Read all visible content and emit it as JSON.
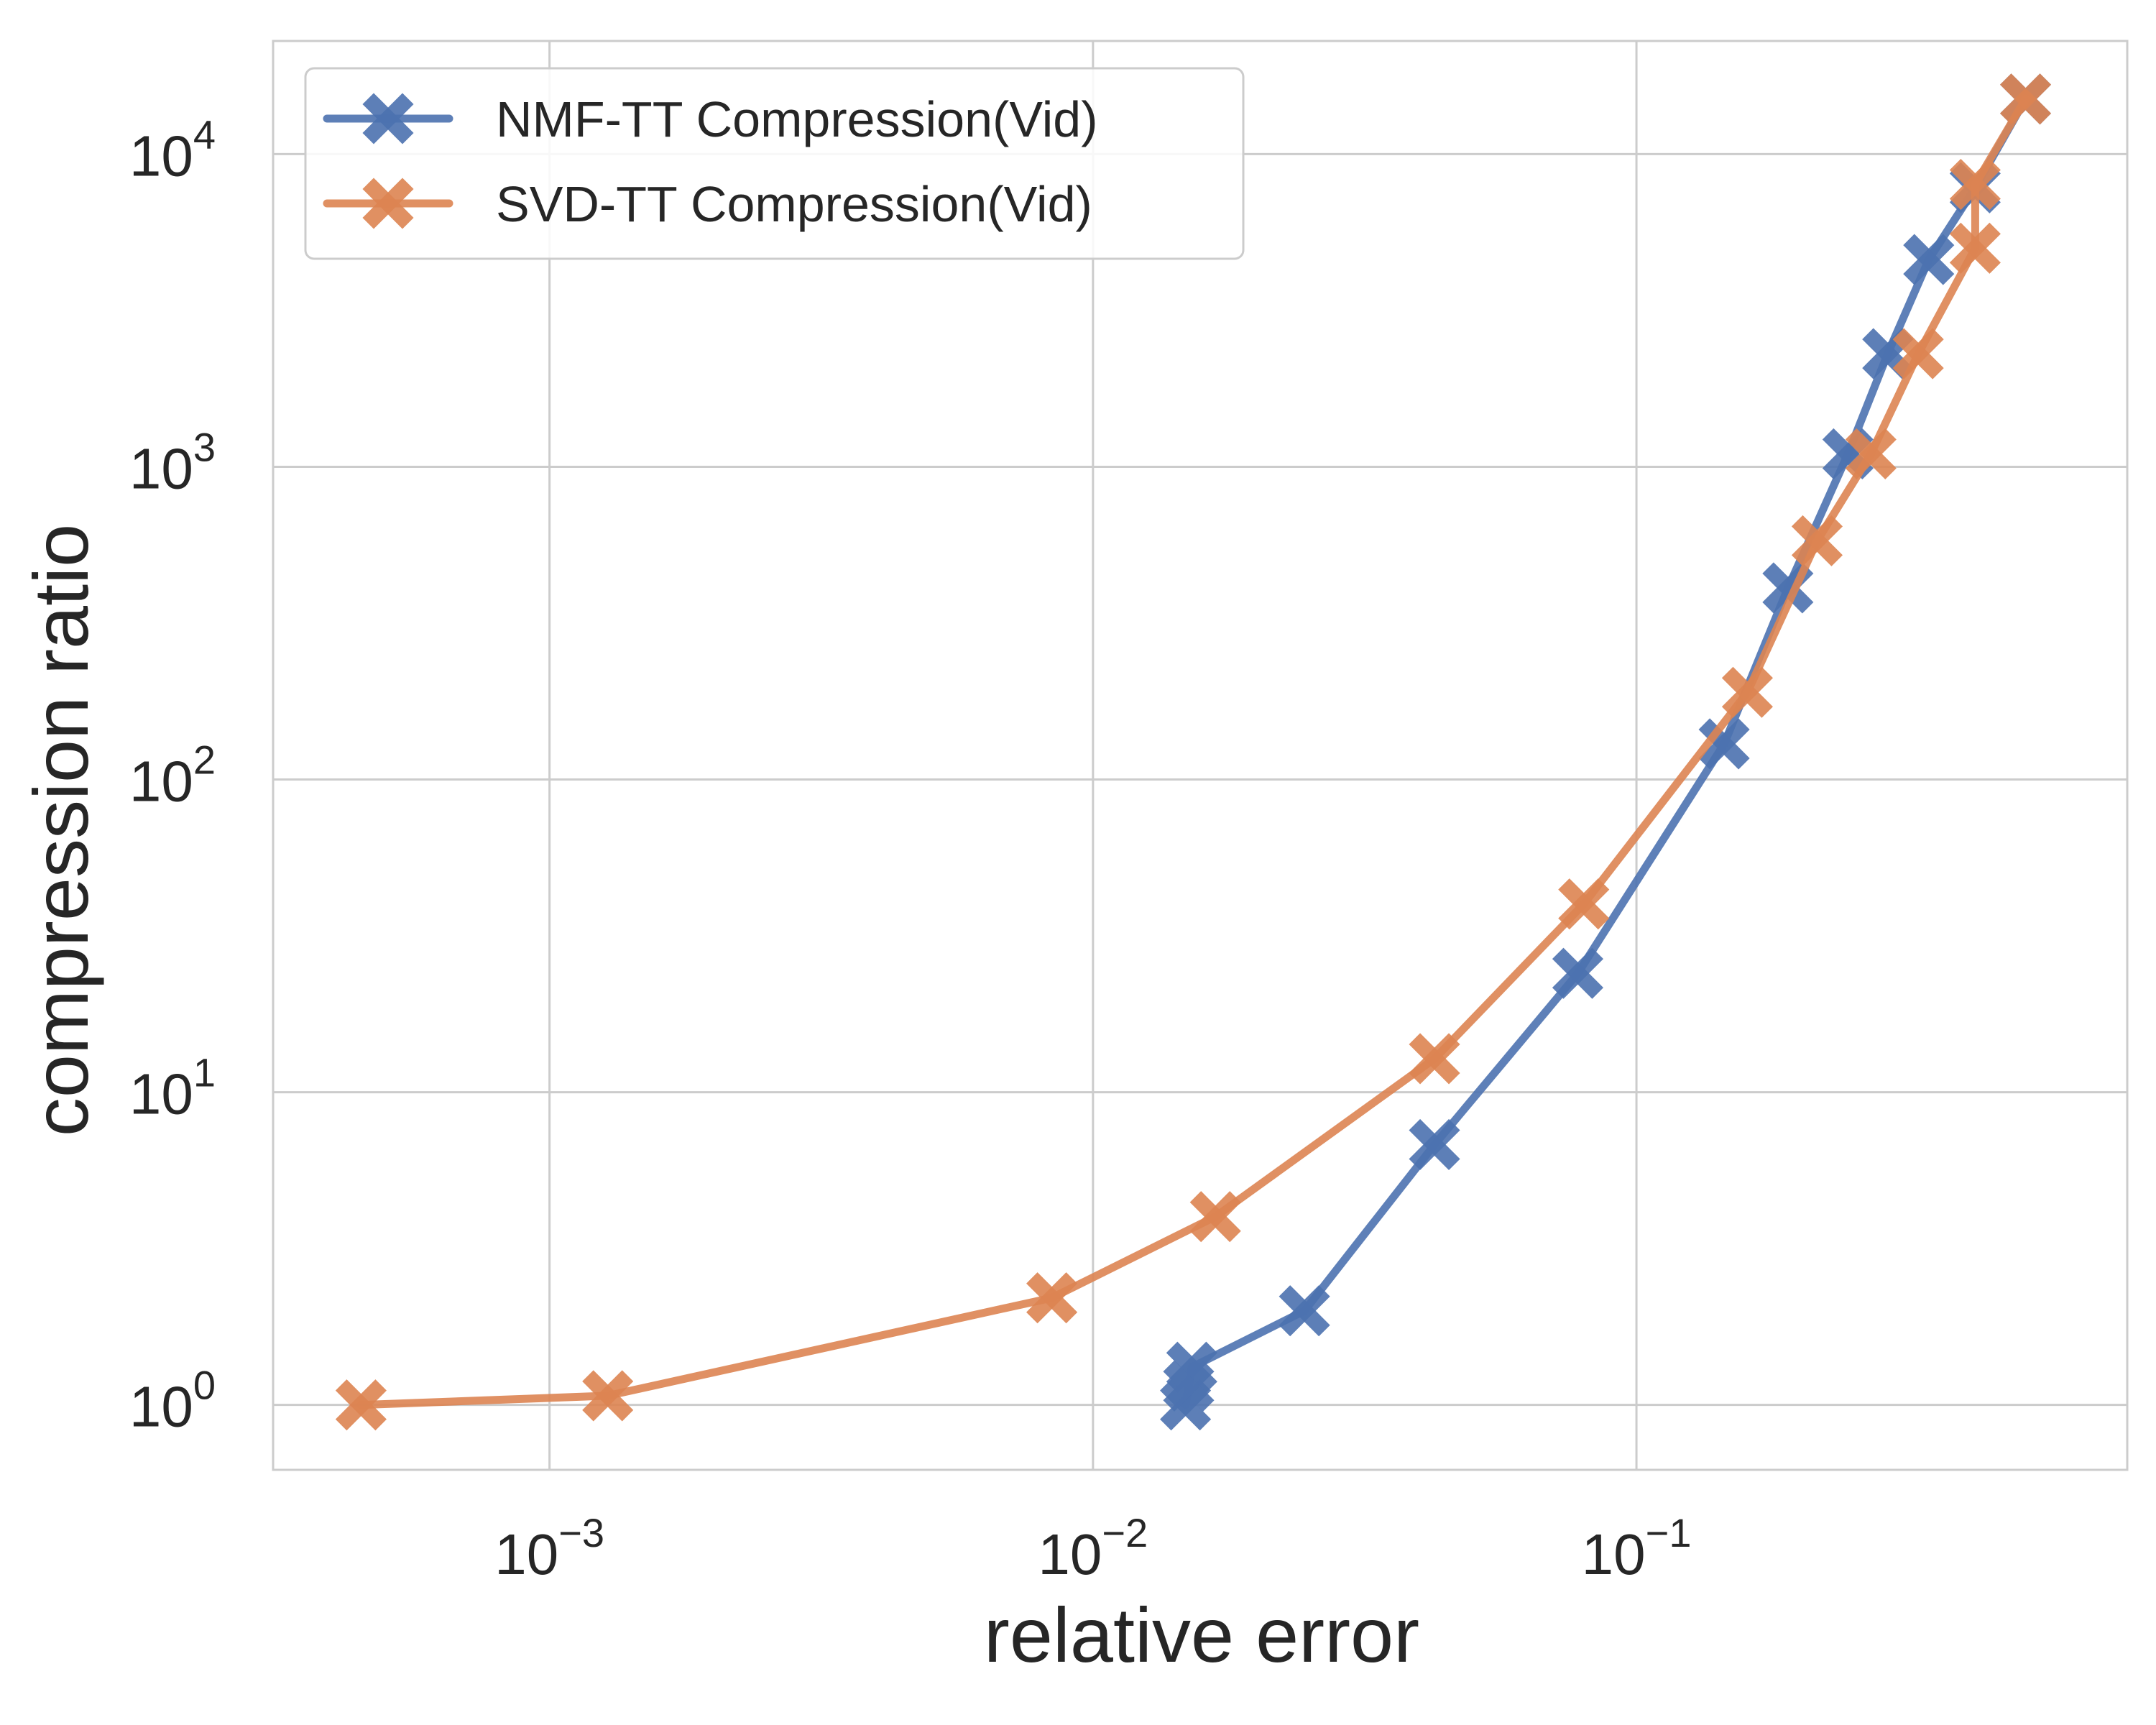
{
  "chart_data": {
    "type": "line",
    "xlabel": "relative error",
    "ylabel": "compression ratio",
    "xscale": "log",
    "yscale": "log",
    "xlim": [
      0.00031,
      0.8
    ],
    "ylim": [
      0.62,
      23000
    ],
    "grid": true,
    "legend_position": "top-left",
    "x_ticks": [
      {
        "value": 0.001,
        "base": "10",
        "exp": "−3"
      },
      {
        "value": 0.01,
        "base": "10",
        "exp": "−2"
      },
      {
        "value": 0.1,
        "base": "10",
        "exp": "−1"
      }
    ],
    "y_ticks": [
      {
        "value": 1,
        "base": "10",
        "exp": "0"
      },
      {
        "value": 10,
        "base": "10",
        "exp": "1"
      },
      {
        "value": 100,
        "base": "10",
        "exp": "2"
      },
      {
        "value": 1000,
        "base": "10",
        "exp": "3"
      },
      {
        "value": 10000,
        "base": "10",
        "exp": "4"
      }
    ],
    "series": [
      {
        "name": "NMF-TT Compression(Vid)",
        "color": "#4c72b0",
        "points": [
          [
            0.0148,
            1.0
          ],
          [
            0.015,
            1.15
          ],
          [
            0.0152,
            1.32
          ],
          [
            0.0245,
            2.0
          ],
          [
            0.0425,
            6.8
          ],
          [
            0.078,
            24
          ],
          [
            0.145,
            130
          ],
          [
            0.19,
            410
          ],
          [
            0.245,
            1100
          ],
          [
            0.29,
            2300
          ],
          [
            0.345,
            4600
          ],
          [
            0.42,
            7800
          ],
          [
            0.52,
            15000
          ]
        ]
      },
      {
        "name": "SVD-TT Compression(Vid)",
        "color": "#dd8452",
        "points": [
          [
            0.00045,
            1.0
          ],
          [
            0.00128,
            1.07
          ],
          [
            0.0084,
            2.2
          ],
          [
            0.0168,
            4.0
          ],
          [
            0.0425,
            12.8
          ],
          [
            0.08,
            40
          ],
          [
            0.16,
            190
          ],
          [
            0.215,
            580
          ],
          [
            0.27,
            1100
          ],
          [
            0.33,
            2300
          ],
          [
            0.42,
            5000
          ],
          [
            0.42,
            8000
          ],
          [
            0.52,
            15000
          ]
        ]
      }
    ]
  }
}
